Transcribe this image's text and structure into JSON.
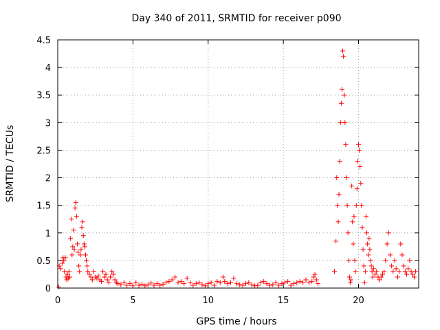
{
  "chart_data": {
    "type": "scatter",
    "title": "Day 340 of 2011, SRMTID for receiver p090",
    "xlabel": "GPS time / hours",
    "ylabel": "SRMTID / TECUs",
    "xlim": [
      0,
      24
    ],
    "ylim": [
      0,
      4.5
    ],
    "x_ticks": [
      0,
      5,
      10,
      15,
      20
    ],
    "x_tick_labels": [
      "0",
      "5",
      "10",
      "15",
      "20"
    ],
    "y_ticks": [
      0,
      0.5,
      1,
      1.5,
      2,
      2.5,
      3,
      3.5,
      4,
      4.5
    ],
    "y_tick_labels": [
      "0",
      "0.5",
      "1",
      "1.5",
      "2",
      "2.5",
      "3",
      "3.5",
      "4",
      "4.5"
    ],
    "grid": true,
    "marker": "+",
    "color": "#ff0000",
    "series": [
      {
        "name": "SRMTID",
        "points": [
          [
            0.05,
            0.02
          ],
          [
            0.1,
            0.4
          ],
          [
            0.2,
            0.35
          ],
          [
            0.3,
            0.45
          ],
          [
            0.35,
            0.55
          ],
          [
            0.4,
            0.5
          ],
          [
            0.45,
            0.3
          ],
          [
            0.5,
            0.55
          ],
          [
            0.55,
            0.2
          ],
          [
            0.6,
            0.15
          ],
          [
            0.65,
            0.25
          ],
          [
            0.7,
            0.18
          ],
          [
            0.75,
            0.3
          ],
          [
            0.8,
            0.2
          ],
          [
            0.85,
            0.9
          ],
          [
            0.9,
            1.25
          ],
          [
            0.95,
            0.6
          ],
          [
            1.0,
            0.75
          ],
          [
            1.05,
            1.05
          ],
          [
            1.1,
            0.7
          ],
          [
            1.15,
            1.45
          ],
          [
            1.2,
            1.55
          ],
          [
            1.25,
            1.3
          ],
          [
            1.3,
            0.8
          ],
          [
            1.35,
            0.65
          ],
          [
            1.4,
            0.4
          ],
          [
            1.45,
            0.3
          ],
          [
            1.5,
            0.6
          ],
          [
            1.55,
            0.7
          ],
          [
            1.6,
            1.1
          ],
          [
            1.65,
            1.2
          ],
          [
            1.7,
            0.95
          ],
          [
            1.75,
            0.8
          ],
          [
            1.8,
            0.75
          ],
          [
            1.85,
            0.6
          ],
          [
            1.9,
            0.5
          ],
          [
            1.95,
            0.4
          ],
          [
            2.0,
            0.3
          ],
          [
            2.1,
            0.25
          ],
          [
            2.2,
            0.2
          ],
          [
            2.3,
            0.15
          ],
          [
            2.4,
            0.3
          ],
          [
            2.5,
            0.2
          ],
          [
            2.6,
            0.18
          ],
          [
            2.7,
            0.22
          ],
          [
            2.8,
            0.15
          ],
          [
            2.9,
            0.12
          ],
          [
            3.0,
            0.3
          ],
          [
            3.1,
            0.2
          ],
          [
            3.2,
            0.25
          ],
          [
            3.3,
            0.15
          ],
          [
            3.4,
            0.1
          ],
          [
            3.5,
            0.2
          ],
          [
            3.6,
            0.3
          ],
          [
            3.7,
            0.25
          ],
          [
            3.8,
            0.15
          ],
          [
            3.9,
            0.1
          ],
          [
            4.0,
            0.08
          ],
          [
            4.2,
            0.06
          ],
          [
            4.4,
            0.1
          ],
          [
            4.6,
            0.05
          ],
          [
            4.8,
            0.08
          ],
          [
            5.0,
            0.04
          ],
          [
            5.2,
            0.1
          ],
          [
            5.4,
            0.05
          ],
          [
            5.6,
            0.07
          ],
          [
            5.8,
            0.04
          ],
          [
            6.0,
            0.06
          ],
          [
            6.2,
            0.09
          ],
          [
            6.4,
            0.05
          ],
          [
            6.6,
            0.08
          ],
          [
            6.8,
            0.05
          ],
          [
            7.0,
            0.07
          ],
          [
            7.2,
            0.1
          ],
          [
            7.4,
            0.12
          ],
          [
            7.6,
            0.15
          ],
          [
            7.8,
            0.2
          ],
          [
            8.0,
            0.1
          ],
          [
            8.2,
            0.12
          ],
          [
            8.4,
            0.08
          ],
          [
            8.6,
            0.18
          ],
          [
            8.8,
            0.1
          ],
          [
            9.0,
            0.05
          ],
          [
            9.2,
            0.08
          ],
          [
            9.4,
            0.1
          ],
          [
            9.6,
            0.06
          ],
          [
            9.8,
            0.04
          ],
          [
            10.0,
            0.08
          ],
          [
            10.2,
            0.1
          ],
          [
            10.4,
            0.05
          ],
          [
            10.6,
            0.12
          ],
          [
            10.8,
            0.1
          ],
          [
            11.0,
            0.2
          ],
          [
            11.1,
            0.12
          ],
          [
            11.3,
            0.08
          ],
          [
            11.5,
            0.1
          ],
          [
            11.7,
            0.18
          ],
          [
            11.9,
            0.08
          ],
          [
            12.1,
            0.06
          ],
          [
            12.3,
            0.05
          ],
          [
            12.5,
            0.08
          ],
          [
            12.7,
            0.1
          ],
          [
            12.9,
            0.06
          ],
          [
            13.1,
            0.04
          ],
          [
            13.3,
            0.05
          ],
          [
            13.5,
            0.1
          ],
          [
            13.7,
            0.12
          ],
          [
            13.9,
            0.08
          ],
          [
            14.1,
            0.05
          ],
          [
            14.3,
            0.06
          ],
          [
            14.5,
            0.1
          ],
          [
            14.7,
            0.05
          ],
          [
            14.9,
            0.08
          ],
          [
            15.1,
            0.1
          ],
          [
            15.3,
            0.12
          ],
          [
            15.5,
            0.05
          ],
          [
            15.7,
            0.08
          ],
          [
            15.9,
            0.1
          ],
          [
            16.1,
            0.12
          ],
          [
            16.3,
            0.1
          ],
          [
            16.5,
            0.15
          ],
          [
            16.7,
            0.1
          ],
          [
            16.9,
            0.12
          ],
          [
            17.0,
            0.2
          ],
          [
            17.1,
            0.25
          ],
          [
            17.2,
            0.15
          ],
          [
            17.3,
            0.08
          ],
          [
            18.4,
            0.3
          ],
          [
            18.5,
            0.85
          ],
          [
            18.55,
            2.0
          ],
          [
            18.6,
            1.5
          ],
          [
            18.65,
            1.2
          ],
          [
            18.7,
            1.7
          ],
          [
            18.75,
            2.3
          ],
          [
            18.8,
            3.0
          ],
          [
            18.85,
            3.35
          ],
          [
            18.9,
            3.6
          ],
          [
            18.95,
            4.3
          ],
          [
            19.0,
            4.2
          ],
          [
            19.05,
            3.5
          ],
          [
            19.1,
            3.0
          ],
          [
            19.15,
            2.6
          ],
          [
            19.2,
            2.0
          ],
          [
            19.25,
            1.5
          ],
          [
            19.3,
            1.0
          ],
          [
            19.35,
            0.5
          ],
          [
            19.4,
            0.2
          ],
          [
            19.45,
            0.1
          ],
          [
            19.5,
            0.15
          ],
          [
            19.55,
            1.85
          ],
          [
            19.6,
            1.2
          ],
          [
            19.65,
            0.8
          ],
          [
            19.7,
            1.3
          ],
          [
            19.75,
            0.5
          ],
          [
            19.8,
            0.3
          ],
          [
            19.85,
            1.5
          ],
          [
            19.9,
            1.8
          ],
          [
            19.95,
            2.3
          ],
          [
            20.0,
            2.6
          ],
          [
            20.05,
            2.5
          ],
          [
            20.1,
            2.2
          ],
          [
            20.15,
            1.9
          ],
          [
            20.2,
            1.5
          ],
          [
            20.25,
            1.1
          ],
          [
            20.3,
            0.7
          ],
          [
            20.35,
            0.4
          ],
          [
            20.4,
            0.1
          ],
          [
            20.45,
            0.3
          ],
          [
            20.5,
            1.3
          ],
          [
            20.55,
            1.0
          ],
          [
            20.6,
            0.8
          ],
          [
            20.65,
            0.6
          ],
          [
            20.7,
            0.9
          ],
          [
            20.75,
            0.7
          ],
          [
            20.8,
            0.5
          ],
          [
            20.85,
            0.4
          ],
          [
            20.9,
            0.3
          ],
          [
            20.95,
            0.2
          ],
          [
            21.0,
            0.35
          ],
          [
            21.1,
            0.25
          ],
          [
            21.2,
            0.3
          ],
          [
            21.3,
            0.2
          ],
          [
            21.4,
            0.15
          ],
          [
            21.5,
            0.2
          ],
          [
            21.6,
            0.25
          ],
          [
            21.7,
            0.3
          ],
          [
            21.8,
            0.5
          ],
          [
            21.9,
            0.8
          ],
          [
            22.0,
            1.0
          ],
          [
            22.1,
            0.6
          ],
          [
            22.2,
            0.4
          ],
          [
            22.3,
            0.3
          ],
          [
            22.4,
            0.5
          ],
          [
            22.5,
            0.35
          ],
          [
            22.6,
            0.2
          ],
          [
            22.7,
            0.3
          ],
          [
            22.8,
            0.8
          ],
          [
            22.9,
            0.6
          ],
          [
            23.0,
            0.4
          ],
          [
            23.1,
            0.3
          ],
          [
            23.2,
            0.25
          ],
          [
            23.3,
            0.35
          ],
          [
            23.4,
            0.5
          ],
          [
            23.5,
            0.3
          ],
          [
            23.6,
            0.25
          ],
          [
            23.7,
            0.2
          ],
          [
            23.8,
            0.3
          ]
        ]
      }
    ]
  }
}
